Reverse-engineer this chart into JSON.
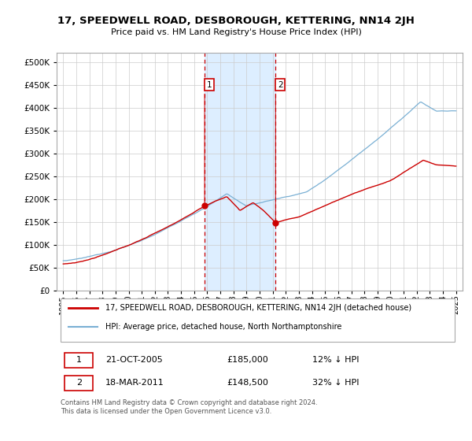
{
  "title": "17, SPEEDWELL ROAD, DESBOROUGH, KETTERING, NN14 2JH",
  "subtitle": "Price paid vs. HM Land Registry's House Price Index (HPI)",
  "legend_line1": "17, SPEEDWELL ROAD, DESBOROUGH, KETTERING, NN14 2JH (detached house)",
  "legend_line2": "HPI: Average price, detached house, North Northamptonshire",
  "footer": "Contains HM Land Registry data © Crown copyright and database right 2024.\nThis data is licensed under the Open Government Licence v3.0.",
  "sale1_label": "1",
  "sale1_date": "21-OCT-2005",
  "sale1_price": "£185,000",
  "sale1_pct": "12% ↓ HPI",
  "sale2_label": "2",
  "sale2_date": "18-MAR-2011",
  "sale2_price": "£148,500",
  "sale2_pct": "32% ↓ HPI",
  "sale1_x": 2005.8,
  "sale1_y": 185000,
  "sale2_x": 2011.22,
  "sale2_y": 148500,
  "red_color": "#cc0000",
  "blue_color": "#7ab0d4",
  "shade_color": "#ddeeff",
  "ylim": [
    0,
    520000
  ],
  "xlim": [
    1994.5,
    2025.5
  ],
  "yticks": [
    0,
    50000,
    100000,
    150000,
    200000,
    250000,
    300000,
    350000,
    400000,
    450000,
    500000
  ],
  "xticks": [
    1995,
    1996,
    1997,
    1998,
    1999,
    2000,
    2001,
    2002,
    2003,
    2004,
    2005,
    2006,
    2007,
    2008,
    2009,
    2010,
    2011,
    2012,
    2013,
    2014,
    2015,
    2016,
    2017,
    2018,
    2019,
    2020,
    2021,
    2022,
    2023,
    2024,
    2025
  ]
}
